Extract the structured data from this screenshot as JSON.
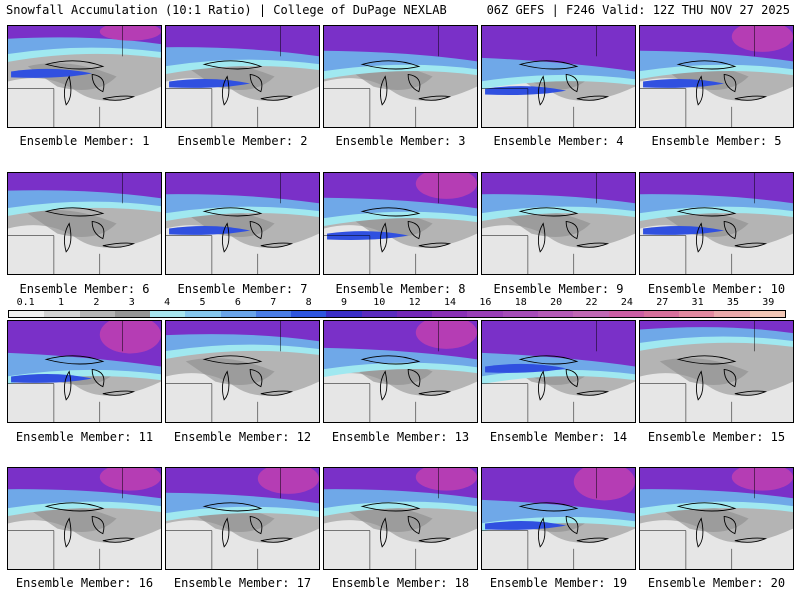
{
  "header": {
    "left": "Snowfall Accumulation (10:1 Ratio) | College of DuPage NEXLAB",
    "right": "06Z GEFS | F246 Valid: 12Z THU NOV 27 2025"
  },
  "label_prefix": "Ensemble Member: ",
  "colors": {
    "light": "#e6e6e6",
    "gray1": "#b4b4b4",
    "gray2": "#8c8c8c",
    "cyan": "#a0e8f0",
    "skyblue": "#6fa8e8",
    "blue": "#3050e0",
    "purple": "#7a30c8",
    "magenta": "#c040b0",
    "border": "#000000"
  },
  "colorbar": {
    "ticks": [
      "0.1",
      "1",
      "2",
      "3",
      "4",
      "5",
      "6",
      "7",
      "8",
      "9",
      "10",
      "12",
      "14",
      "16",
      "18",
      "20",
      "22",
      "24",
      "27",
      "31",
      "35",
      "39"
    ],
    "colors": [
      "#f0f0f0",
      "#d2d2d2",
      "#b4b4b4",
      "#969696",
      "#a8e6ef",
      "#86c8ee",
      "#6aa4e9",
      "#4a7de6",
      "#2e56df",
      "#3a2ec6",
      "#5a2bbd",
      "#7428b6",
      "#8a30b5",
      "#9a3eb7",
      "#a64cb8",
      "#b45ab7",
      "#c068b4",
      "#cc5ea4",
      "#d8709c",
      "#e289a0",
      "#ebaaac",
      "#f2c7b6"
    ]
  },
  "members": [
    {
      "num": "1",
      "purple_level": 0.18,
      "magenta": true,
      "blue_band": 0.45
    },
    {
      "num": "2",
      "purple_level": 0.3,
      "magenta": false,
      "blue_band": 0.55
    },
    {
      "num": "3",
      "purple_level": 0.35,
      "magenta": false,
      "blue_band": 0.0
    },
    {
      "num": "4",
      "purple_level": 0.45,
      "magenta": false,
      "blue_band": 0.62
    },
    {
      "num": "5",
      "purple_level": 0.35,
      "magenta": true,
      "blue_band": 0.55
    },
    {
      "num": "6",
      "purple_level": 0.25,
      "magenta": false,
      "blue_band": 0.0
    },
    {
      "num": "7",
      "purple_level": 0.3,
      "magenta": false,
      "blue_band": 0.55
    },
    {
      "num": "8",
      "purple_level": 0.35,
      "magenta": true,
      "blue_band": 0.6
    },
    {
      "num": "9",
      "purple_level": 0.3,
      "magenta": false,
      "blue_band": 0.0
    },
    {
      "num": "10",
      "purple_level": 0.3,
      "magenta": false,
      "blue_band": 0.55
    },
    {
      "num": "11",
      "purple_level": 0.45,
      "magenta": true,
      "blue_band": 0.55
    },
    {
      "num": "12",
      "purple_level": 0.2,
      "magenta": false,
      "blue_band": 0.0
    },
    {
      "num": "13",
      "purple_level": 0.38,
      "magenta": true,
      "blue_band": 0.0
    },
    {
      "num": "14",
      "purple_level": 0.45,
      "magenta": false,
      "blue_band": 0.45
    },
    {
      "num": "15",
      "purple_level": 0.12,
      "magenta": false,
      "blue_band": 0.0
    },
    {
      "num": "16",
      "purple_level": 0.3,
      "magenta": true,
      "blue_band": 0.0
    },
    {
      "num": "17",
      "purple_level": 0.35,
      "magenta": true,
      "blue_band": 0.0
    },
    {
      "num": "18",
      "purple_level": 0.3,
      "magenta": true,
      "blue_band": 0.0
    },
    {
      "num": "19",
      "purple_level": 0.45,
      "magenta": true,
      "blue_band": 0.55
    },
    {
      "num": "20",
      "purple_level": 0.3,
      "magenta": true,
      "blue_band": 0.0
    }
  ]
}
